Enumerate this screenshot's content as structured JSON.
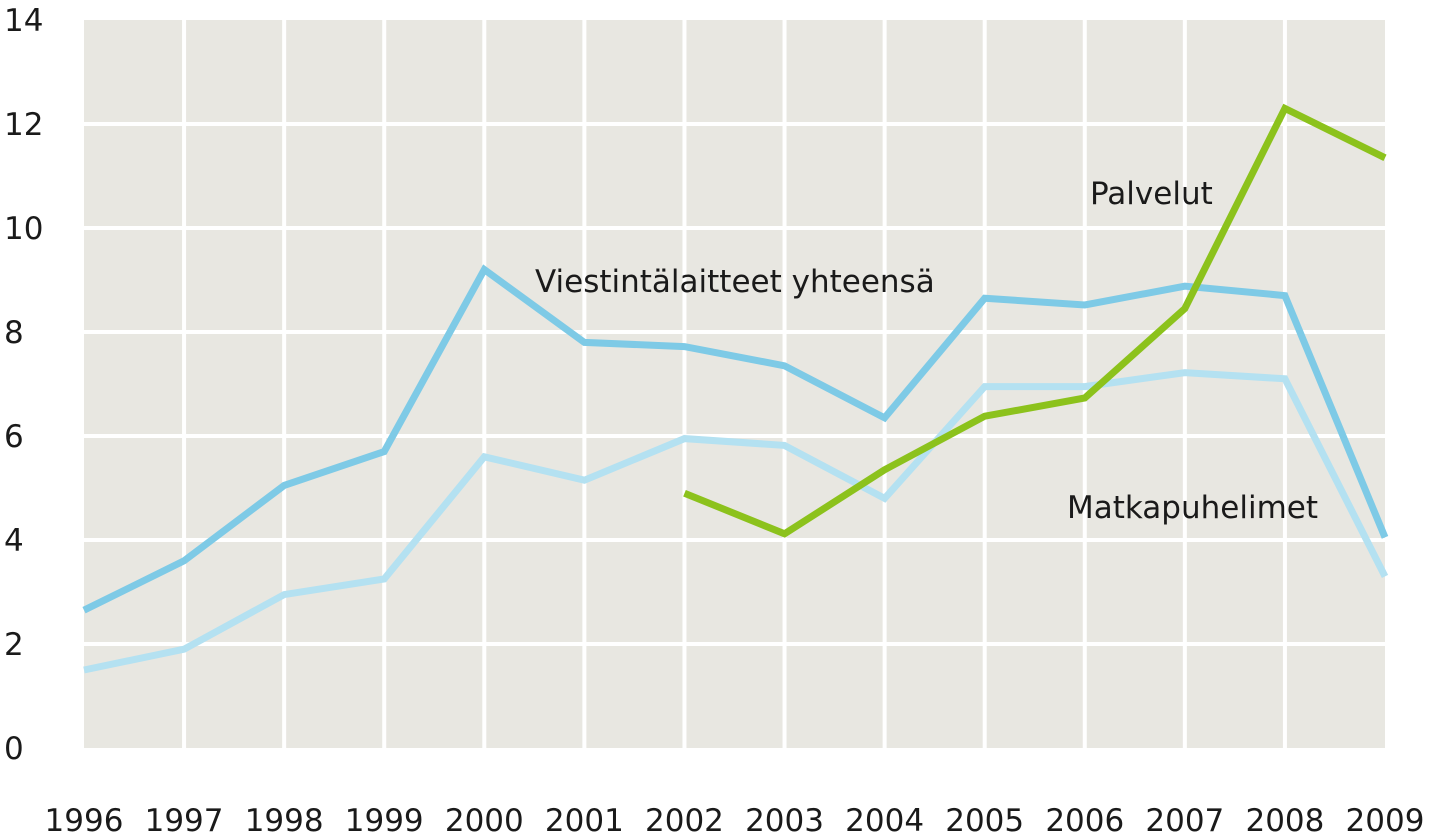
{
  "chart_data": {
    "type": "line",
    "title": "",
    "xlabel": "",
    "ylabel": "",
    "x": [
      1996,
      1997,
      1998,
      1999,
      2000,
      2001,
      2002,
      2003,
      2004,
      2005,
      2006,
      2007,
      2008,
      2009
    ],
    "x_ticks": [
      "1996",
      "1997",
      "1998",
      "1999",
      "2000",
      "2001",
      "2002",
      "2003",
      "2004",
      "2005",
      "2006",
      "2007",
      "2008",
      "2009"
    ],
    "ylim": [
      0,
      14
    ],
    "y_ticks": [
      "0",
      "2",
      "4",
      "6",
      "8",
      "10",
      "12",
      "14"
    ],
    "grid": true,
    "plot_background": "#e8e7e1",
    "grid_color": "#ffffff",
    "series": [
      {
        "name": "Viestintälaitteet yhteensä",
        "color": "#7ecae6",
        "values": [
          2.65,
          3.6,
          5.05,
          5.7,
          9.2,
          7.8,
          7.72,
          7.35,
          6.35,
          8.65,
          8.52,
          8.88,
          8.7,
          4.05
        ]
      },
      {
        "name": "Matkapuhelimet",
        "color": "#b4e1f1",
        "values": [
          1.5,
          1.9,
          2.95,
          3.25,
          5.6,
          5.15,
          5.95,
          5.82,
          4.8,
          6.95,
          6.95,
          7.22,
          7.1,
          3.3
        ]
      },
      {
        "name": "Palvelut",
        "color": "#8cc21c",
        "values": [
          null,
          null,
          null,
          null,
          null,
          null,
          4.9,
          4.12,
          5.35,
          6.38,
          6.73,
          8.45,
          12.3,
          11.35
        ]
      }
    ]
  }
}
